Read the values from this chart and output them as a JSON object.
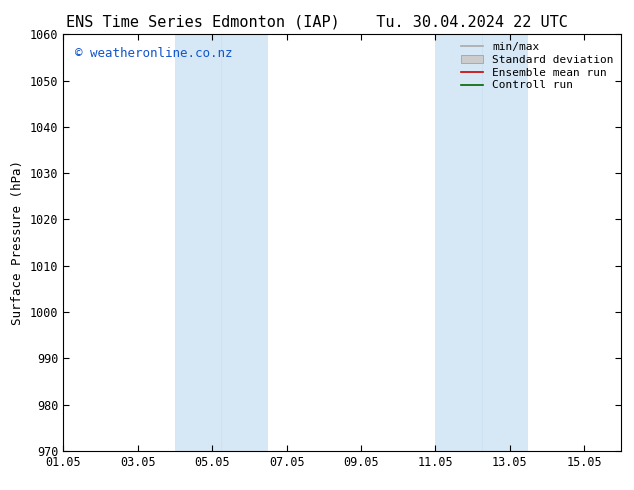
{
  "title_left": "ENS Time Series Edmonton (IAP)",
  "title_right": "Tu. 30.04.2024 22 UTC",
  "ylabel": "Surface Pressure (hPa)",
  "ylim": [
    970,
    1060
  ],
  "yticks": [
    970,
    980,
    990,
    1000,
    1010,
    1020,
    1030,
    1040,
    1050,
    1060
  ],
  "xstart_days": 0,
  "xend_days": 15,
  "xtick_labels": [
    "01.05",
    "03.05",
    "05.05",
    "07.05",
    "09.05",
    "11.05",
    "13.05",
    "15.05"
  ],
  "xtick_positions": [
    0,
    2,
    4,
    6,
    8,
    10,
    12,
    14
  ],
  "shaded_bands": [
    {
      "xstart": 3.0,
      "xend": 4.0
    },
    {
      "xstart": 4.0,
      "xend": 5.5
    },
    {
      "xstart": 10.0,
      "xend": 11.5
    },
    {
      "xstart": 11.5,
      "xend": 12.5
    }
  ],
  "shade_color": "#d6e8f5",
  "shade_alpha": 1.0,
  "watermark": "© weatheronline.co.nz",
  "watermark_color": "#1155cc",
  "watermark_fontsize": 9,
  "legend_labels": [
    "min/max",
    "Standard deviation",
    "Ensemble mean run",
    "Controll run"
  ],
  "legend_line_color": "#aaaaaa",
  "legend_patch_color": "#cccccc",
  "legend_red": "#cc0000",
  "legend_green": "#006600",
  "background_color": "#ffffff",
  "plot_bg_color": "#ffffff",
  "title_fontsize": 11,
  "axis_fontsize": 9,
  "tick_fontsize": 8.5,
  "legend_fontsize": 8
}
